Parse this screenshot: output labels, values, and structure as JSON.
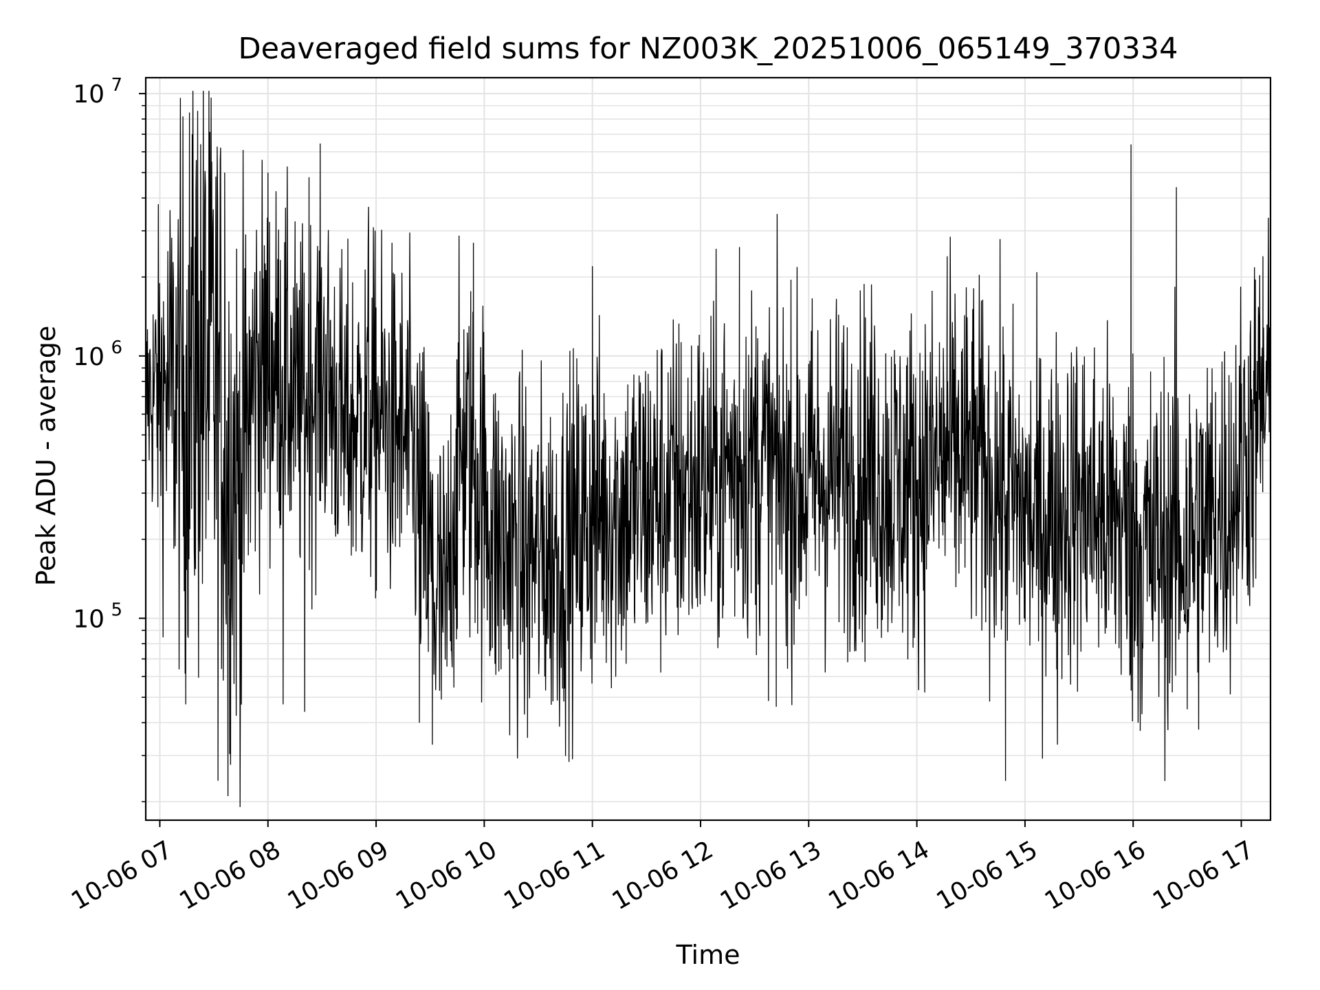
{
  "chart_data": {
    "type": "line",
    "title": "Deaveraged field sums for NZ003K_20251006_065149_370334",
    "xlabel": "Time",
    "ylabel": "Peak ADU - average",
    "yscale": "log",
    "ylim": [
      17000,
      11500000
    ],
    "xlim_hours": [
      6.87,
      17.27
    ],
    "grid": true,
    "line_color": "#000000",
    "x_ticks": [
      {
        "hour": 7,
        "label": "10-06 07"
      },
      {
        "hour": 8,
        "label": "10-06 08"
      },
      {
        "hour": 9,
        "label": "10-06 09"
      },
      {
        "hour": 10,
        "label": "10-06 10"
      },
      {
        "hour": 11,
        "label": "10-06 11"
      },
      {
        "hour": 12,
        "label": "10-06 12"
      },
      {
        "hour": 13,
        "label": "10-06 13"
      },
      {
        "hour": 14,
        "label": "10-06 14"
      },
      {
        "hour": 15,
        "label": "10-06 15"
      },
      {
        "hour": 16,
        "label": "10-06 16"
      },
      {
        "hour": 17,
        "label": "10-06 17"
      }
    ],
    "y_ticks": [
      {
        "value": 100000,
        "base": "10",
        "exp": "5"
      },
      {
        "value": 1000000,
        "base": "10",
        "exp": "6"
      },
      {
        "value": 10000000,
        "base": "10",
        "exp": "7"
      }
    ],
    "series_name": "Peak ADU - average",
    "envelope": {
      "hours": [
        6.87,
        7.05,
        7.2,
        7.35,
        7.5,
        7.62,
        7.75,
        7.9,
        8.1,
        8.3,
        8.5,
        8.7,
        8.9,
        9.1,
        9.3,
        9.45,
        9.55,
        9.65,
        9.8,
        9.95,
        10.1,
        10.3,
        10.5,
        10.7,
        10.9,
        11.1,
        11.3,
        11.5,
        11.7,
        11.9,
        12.1,
        12.3,
        12.5,
        12.7,
        12.9,
        13.1,
        13.3,
        13.5,
        13.7,
        13.9,
        14.1,
        14.3,
        14.5,
        14.7,
        14.9,
        15.1,
        15.3,
        15.5,
        15.7,
        15.9,
        16.1,
        16.3,
        16.5,
        16.7,
        16.9,
        17.1,
        17.27
      ],
      "center": [
        700000,
        750000,
        700000,
        1000000,
        800000,
        450000,
        300000,
        900000,
        900000,
        600000,
        900000,
        500000,
        600000,
        550000,
        450000,
        200000,
        120000,
        100000,
        450000,
        350000,
        200000,
        180000,
        170000,
        180000,
        220000,
        260000,
        250000,
        280000,
        300000,
        320000,
        330000,
        380000,
        400000,
        360000,
        330000,
        340000,
        360000,
        380000,
        340000,
        320000,
        360000,
        420000,
        400000,
        330000,
        280000,
        230000,
        260000,
        280000,
        250000,
        220000,
        180000,
        190000,
        200000,
        230000,
        280000,
        500000,
        700000
      ],
      "spread": [
        0.45,
        0.9,
        1.2,
        1.5,
        1.4,
        1.3,
        1.2,
        0.9,
        0.8,
        0.8,
        0.8,
        0.75,
        0.8,
        0.8,
        0.8,
        0.85,
        0.9,
        0.8,
        0.85,
        0.85,
        0.85,
        0.8,
        0.8,
        0.8,
        0.8,
        0.8,
        0.8,
        0.8,
        0.8,
        0.8,
        0.8,
        0.8,
        0.8,
        0.8,
        0.8,
        0.8,
        0.8,
        0.8,
        0.8,
        0.8,
        0.8,
        0.8,
        0.8,
        0.8,
        0.8,
        0.8,
        0.8,
        0.8,
        0.8,
        0.85,
        0.85,
        0.85,
        0.85,
        0.85,
        0.8,
        0.8,
        0.75
      ]
    },
    "notable_points": [
      {
        "hour": 7.35,
        "value": 8600000
      },
      {
        "hour": 7.3,
        "value": 7000000
      },
      {
        "hour": 7.48,
        "value": 5500000
      },
      {
        "hour": 7.6,
        "value": 5000000
      },
      {
        "hour": 8.0,
        "value": 5000000
      },
      {
        "hour": 8.38,
        "value": 4800000
      },
      {
        "hour": 8.93,
        "value": 3700000
      },
      {
        "hour": 9.9,
        "value": 2700000
      },
      {
        "hour": 11.0,
        "value": 2200000
      },
      {
        "hour": 12.36,
        "value": 2600000
      },
      {
        "hour": 14.28,
        "value": 2400000
      },
      {
        "hour": 15.98,
        "value": 6400000
      },
      {
        "hour": 16.4,
        "value": 4400000
      },
      {
        "hour": 17.2,
        "value": 2400000
      },
      {
        "hour": 7.63,
        "value": 21000
      },
      {
        "hour": 7.24,
        "value": 47000
      },
      {
        "hour": 8.14,
        "value": 47000
      },
      {
        "hour": 8.34,
        "value": 44000
      },
      {
        "hour": 9.4,
        "value": 40000
      },
      {
        "hour": 9.52,
        "value": 33000
      },
      {
        "hour": 10.4,
        "value": 35000
      },
      {
        "hour": 12.7,
        "value": 46000
      },
      {
        "hour": 14.82,
        "value": 24000
      },
      {
        "hour": 15.3,
        "value": 33000
      },
      {
        "hour": 16.5,
        "value": 45000
      }
    ]
  }
}
